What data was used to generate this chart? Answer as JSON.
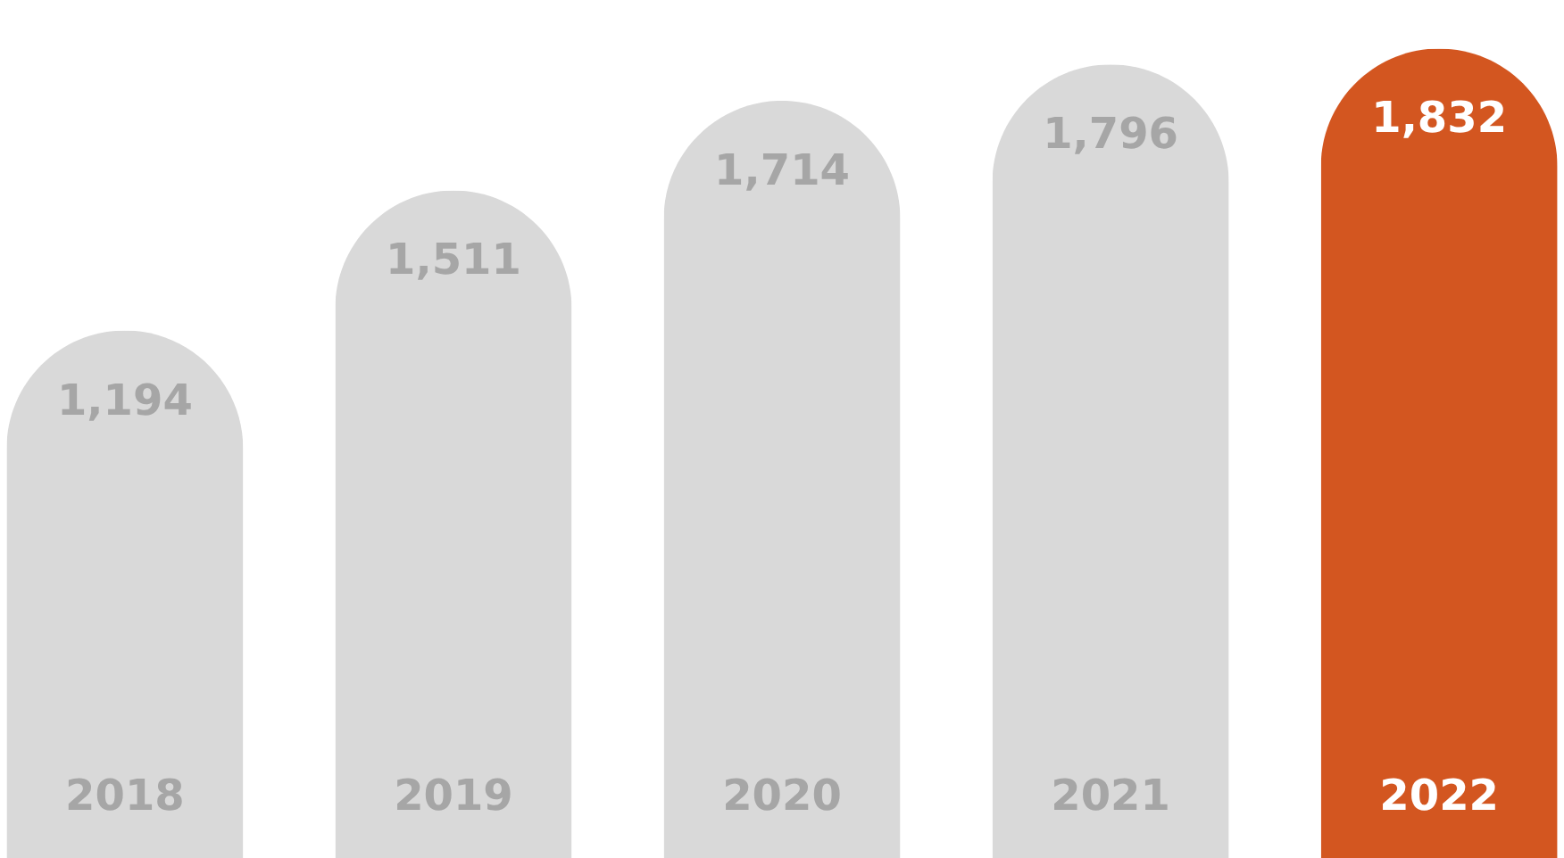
{
  "chart_data": {
    "type": "bar",
    "categories": [
      "2018",
      "2019",
      "2020",
      "2021",
      "2022"
    ],
    "values": [
      1194,
      1511,
      1714,
      1796,
      1832
    ],
    "value_labels": [
      "1,194",
      "1,511",
      "1,714",
      "1,796",
      "1,832"
    ],
    "colors": [
      "#d9d9d9",
      "#d9d9d9",
      "#d9d9d9",
      "#d9d9d9",
      "#d35620"
    ]
  }
}
